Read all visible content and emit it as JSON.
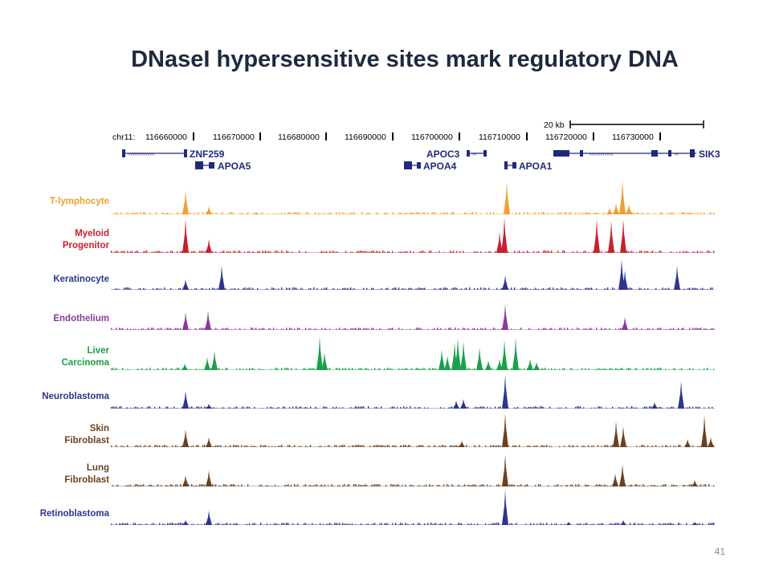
{
  "slide": {
    "title": "DNaseI hypersensitive sites mark regulatory DNA",
    "page_number": "41"
  },
  "browser": {
    "scale_label": "20 kb",
    "chrom_prefix": "chr11:",
    "coordinates": [
      "116660000",
      "116670000",
      "116680000",
      "116690000",
      "116700000",
      "116710000",
      "116720000",
      "116730000"
    ],
    "genes": [
      {
        "name": "ZNF259"
      },
      {
        "name": "APOA5"
      },
      {
        "name": "APOC3"
      },
      {
        "name": "APOA4"
      },
      {
        "name": "APOA1"
      },
      {
        "name": "SIK3"
      }
    ],
    "gene_color": "#1f2a7a"
  },
  "tracks": [
    {
      "line1": "T-lymphocyte",
      "line2": "",
      "color": "#f0a030"
    },
    {
      "line1": "Myeloid",
      "line2": "Progenitor",
      "color": "#c8202e"
    },
    {
      "line1": "Keratinocyte",
      "line2": "",
      "color": "#2c3590"
    },
    {
      "line1": "Endothelium",
      "line2": "",
      "color": "#8a3a9a"
    },
    {
      "line1": "Liver",
      "line2": "Carcinoma",
      "color": "#1aa04a"
    },
    {
      "line1": "Neuroblastoma",
      "line2": "",
      "color": "#2c3590"
    },
    {
      "line1": "Skin",
      "line2": "Fibroblast",
      "color": "#6b4220"
    },
    {
      "line1": "Lung",
      "line2": "Fibroblast",
      "color": "#6b4220"
    },
    {
      "line1": "Retinoblastoma",
      "line2": "",
      "color": "#2c3590"
    }
  ]
}
